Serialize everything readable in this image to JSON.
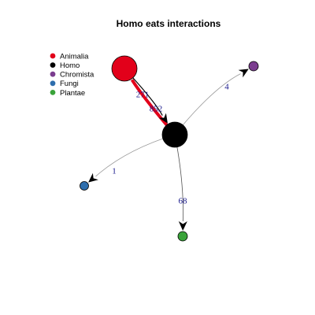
{
  "title": "Homo eats interactions",
  "legend": [
    {
      "label": "Animalia",
      "color": "#e2001a"
    },
    {
      "label": "Homo",
      "color": "#000000"
    },
    {
      "label": "Chromista",
      "color": "#7b3d8f"
    },
    {
      "label": "Fungi",
      "color": "#2e6ead"
    },
    {
      "label": "Plantae",
      "color": "#3aa33a"
    }
  ],
  "nodes": [
    {
      "id": "homo",
      "group": "Homo",
      "color": "#000000"
    },
    {
      "id": "animalia",
      "group": "Animalia",
      "color": "#e2001a"
    },
    {
      "id": "chromista",
      "group": "Chromista",
      "color": "#7b3d8f"
    },
    {
      "id": "fungi",
      "group": "Fungi",
      "color": "#2e6ead"
    },
    {
      "id": "plantae",
      "group": "Plantae",
      "color": "#3aa33a"
    }
  ],
  "edges": [
    {
      "from": "homo",
      "to": "animalia",
      "label": "852",
      "color": "#e2001a"
    },
    {
      "from": "animalia",
      "to": "homo",
      "label": "271",
      "color": "#000000"
    },
    {
      "from": "homo",
      "to": "chromista",
      "label": "4",
      "color": "#999999"
    },
    {
      "from": "homo",
      "to": "fungi",
      "label": "1",
      "color": "#999999"
    },
    {
      "from": "homo",
      "to": "plantae",
      "label": "68",
      "color": "#555555"
    }
  ]
}
